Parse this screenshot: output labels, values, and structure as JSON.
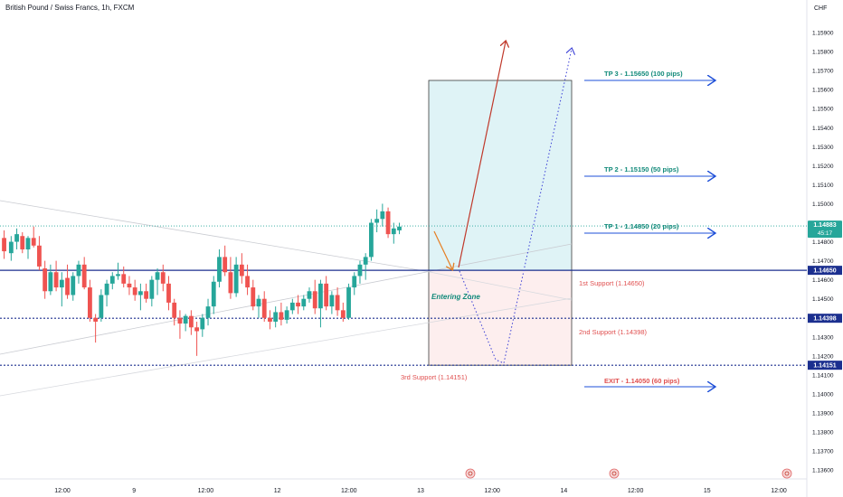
{
  "header": {
    "title": "British Pound / Swiss Francs, 1h, FXCM",
    "currency": "CHF"
  },
  "colors": {
    "bull": "#26a69a",
    "bear": "#ef5350",
    "level_line": "#1b2f8f",
    "tp_text": "#128a7a",
    "support_text": "#e05050",
    "arrow_blue": "#1e4fd8",
    "long_zone": "#dff3f6",
    "short_zone": "#fdeeee",
    "last_price_bg": "#26a69a"
  },
  "chart_data": {
    "type": "candlestick",
    "symbol": "British Pound / Swiss Francs",
    "interval": "1h",
    "source": "FXCM",
    "ylim": [
      1.1355,
      1.1612
    ],
    "y_ticks": [
      "1.15900",
      "1.15800",
      "1.15700",
      "1.15600",
      "1.15500",
      "1.15400",
      "1.15300",
      "1.15200",
      "1.15100",
      "1.15000",
      "1.14900",
      "1.14800",
      "1.14700",
      "1.14600",
      "1.14500",
      "1.14400",
      "1.14300",
      "1.14200",
      "1.14100",
      "1.14000",
      "1.13900",
      "1.13800",
      "1.13700",
      "1.13600"
    ],
    "x_ticks": [
      {
        "label": "12:00",
        "x": 5
      },
      {
        "label": "9",
        "x": 10
      },
      {
        "label": "12:00",
        "x": 15
      },
      {
        "label": "12",
        "x": 20
      },
      {
        "label": "12:00",
        "x": 25
      },
      {
        "label": "13",
        "x": 30
      },
      {
        "label": "12:00",
        "x": 35
      },
      {
        "label": "14",
        "x": 40
      },
      {
        "label": "12:00",
        "x": 45
      },
      {
        "label": "15",
        "x": 50
      },
      {
        "label": "12:00",
        "x": 55
      }
    ],
    "candles": [
      {
        "x": 0.1,
        "o": 1.1482,
        "h": 1.1486,
        "l": 1.1471,
        "c": 1.1475
      },
      {
        "x": 0.6,
        "o": 1.1474,
        "h": 1.1483,
        "l": 1.147,
        "c": 1.148
      },
      {
        "x": 1.0,
        "o": 1.148,
        "h": 1.1487,
        "l": 1.1476,
        "c": 1.1484
      },
      {
        "x": 1.4,
        "o": 1.1483,
        "h": 1.1485,
        "l": 1.1474,
        "c": 1.1476
      },
      {
        "x": 1.8,
        "o": 1.1476,
        "h": 1.1483,
        "l": 1.1471,
        "c": 1.1482
      },
      {
        "x": 2.2,
        "o": 1.1482,
        "h": 1.1488,
        "l": 1.1477,
        "c": 1.1478
      },
      {
        "x": 2.6,
        "o": 1.1478,
        "h": 1.1483,
        "l": 1.1465,
        "c": 1.1467
      },
      {
        "x": 3.0,
        "o": 1.1466,
        "h": 1.147,
        "l": 1.145,
        "c": 1.1454
      },
      {
        "x": 3.4,
        "o": 1.1454,
        "h": 1.1468,
        "l": 1.1452,
        "c": 1.1464
      },
      {
        "x": 3.8,
        "o": 1.1464,
        "h": 1.147,
        "l": 1.1454,
        "c": 1.1456
      },
      {
        "x": 4.2,
        "o": 1.1456,
        "h": 1.1464,
        "l": 1.1446,
        "c": 1.146
      },
      {
        "x": 4.6,
        "o": 1.1461,
        "h": 1.1468,
        "l": 1.145,
        "c": 1.1452
      },
      {
        "x": 5.0,
        "o": 1.1452,
        "h": 1.1464,
        "l": 1.1449,
        "c": 1.1462
      },
      {
        "x": 5.4,
        "o": 1.1462,
        "h": 1.147,
        "l": 1.1458,
        "c": 1.1468
      },
      {
        "x": 5.8,
        "o": 1.1468,
        "h": 1.1472,
        "l": 1.1455,
        "c": 1.1456
      },
      {
        "x": 6.2,
        "o": 1.1456,
        "h": 1.146,
        "l": 1.1438,
        "c": 1.144
      },
      {
        "x": 6.6,
        "o": 1.144,
        "h": 1.1442,
        "l": 1.1427,
        "c": 1.1438
      },
      {
        "x": 7.0,
        "o": 1.144,
        "h": 1.1455,
        "l": 1.1438,
        "c": 1.1452
      },
      {
        "x": 7.4,
        "o": 1.1452,
        "h": 1.146,
        "l": 1.1446,
        "c": 1.1458
      },
      {
        "x": 7.8,
        "o": 1.1458,
        "h": 1.1464,
        "l": 1.1455,
        "c": 1.1462
      },
      {
        "x": 8.2,
        "o": 1.1462,
        "h": 1.1469,
        "l": 1.146,
        "c": 1.1463
      },
      {
        "x": 8.6,
        "o": 1.1463,
        "h": 1.1467,
        "l": 1.1456,
        "c": 1.1458
      },
      {
        "x": 9.0,
        "o": 1.1458,
        "h": 1.1462,
        "l": 1.1452,
        "c": 1.1456
      },
      {
        "x": 9.4,
        "o": 1.1456,
        "h": 1.146,
        "l": 1.1449,
        "c": 1.1452
      },
      {
        "x": 9.8,
        "o": 1.1452,
        "h": 1.1458,
        "l": 1.1444,
        "c": 1.1454
      },
      {
        "x": 10.2,
        "o": 1.1454,
        "h": 1.1458,
        "l": 1.1448,
        "c": 1.145
      },
      {
        "x": 10.6,
        "o": 1.145,
        "h": 1.1462,
        "l": 1.1446,
        "c": 1.146
      },
      {
        "x": 11.0,
        "o": 1.146,
        "h": 1.1466,
        "l": 1.1452,
        "c": 1.1464
      },
      {
        "x": 11.4,
        "o": 1.1464,
        "h": 1.1468,
        "l": 1.1454,
        "c": 1.1458
      },
      {
        "x": 11.8,
        "o": 1.1458,
        "h": 1.1462,
        "l": 1.1444,
        "c": 1.1448
      },
      {
        "x": 12.2,
        "o": 1.1448,
        "h": 1.145,
        "l": 1.1436,
        "c": 1.144
      },
      {
        "x": 12.6,
        "o": 1.144,
        "h": 1.1444,
        "l": 1.1429,
        "c": 1.1437
      },
      {
        "x": 13.0,
        "o": 1.1437,
        "h": 1.1442,
        "l": 1.1433,
        "c": 1.1441
      },
      {
        "x": 13.4,
        "o": 1.1441,
        "h": 1.1444,
        "l": 1.1431,
        "c": 1.1435
      },
      {
        "x": 13.8,
        "o": 1.1435,
        "h": 1.1438,
        "l": 1.142,
        "c": 1.1433
      },
      {
        "x": 14.2,
        "o": 1.1434,
        "h": 1.1442,
        "l": 1.143,
        "c": 1.144
      },
      {
        "x": 14.6,
        "o": 1.144,
        "h": 1.145,
        "l": 1.1436,
        "c": 1.1446
      },
      {
        "x": 15.0,
        "o": 1.1446,
        "h": 1.1462,
        "l": 1.1442,
        "c": 1.1459
      },
      {
        "x": 15.4,
        "o": 1.1459,
        "h": 1.1476,
        "l": 1.1456,
        "c": 1.1472
      },
      {
        "x": 15.8,
        "o": 1.1472,
        "h": 1.1478,
        "l": 1.1462,
        "c": 1.1464
      },
      {
        "x": 16.2,
        "o": 1.1464,
        "h": 1.1472,
        "l": 1.145,
        "c": 1.1453
      },
      {
        "x": 16.6,
        "o": 1.1453,
        "h": 1.1472,
        "l": 1.1451,
        "c": 1.1468
      },
      {
        "x": 17.0,
        "o": 1.1468,
        "h": 1.1474,
        "l": 1.1458,
        "c": 1.1462
      },
      {
        "x": 17.4,
        "o": 1.1462,
        "h": 1.1468,
        "l": 1.1452,
        "c": 1.1456
      },
      {
        "x": 17.8,
        "o": 1.1456,
        "h": 1.146,
        "l": 1.1444,
        "c": 1.1446
      },
      {
        "x": 18.2,
        "o": 1.1446,
        "h": 1.1452,
        "l": 1.144,
        "c": 1.145
      },
      {
        "x": 18.6,
        "o": 1.145,
        "h": 1.1454,
        "l": 1.1438,
        "c": 1.144
      },
      {
        "x": 19.0,
        "o": 1.144,
        "h": 1.1444,
        "l": 1.1434,
        "c": 1.1438
      },
      {
        "x": 19.4,
        "o": 1.1438,
        "h": 1.1446,
        "l": 1.1435,
        "c": 1.1443
      },
      {
        "x": 19.8,
        "o": 1.1443,
        "h": 1.1448,
        "l": 1.1436,
        "c": 1.1439
      },
      {
        "x": 20.2,
        "o": 1.1439,
        "h": 1.1446,
        "l": 1.1437,
        "c": 1.1444
      },
      {
        "x": 20.6,
        "o": 1.1444,
        "h": 1.145,
        "l": 1.1442,
        "c": 1.1448
      },
      {
        "x": 21.0,
        "o": 1.1448,
        "h": 1.1452,
        "l": 1.1442,
        "c": 1.1446
      },
      {
        "x": 21.4,
        "o": 1.1446,
        "h": 1.1452,
        "l": 1.1444,
        "c": 1.145
      },
      {
        "x": 21.8,
        "o": 1.145,
        "h": 1.1456,
        "l": 1.1448,
        "c": 1.1454
      },
      {
        "x": 22.2,
        "o": 1.1454,
        "h": 1.146,
        "l": 1.1442,
        "c": 1.1445
      },
      {
        "x": 22.6,
        "o": 1.1445,
        "h": 1.146,
        "l": 1.1435,
        "c": 1.1458
      },
      {
        "x": 23.0,
        "o": 1.1458,
        "h": 1.1462,
        "l": 1.1444,
        "c": 1.1446
      },
      {
        "x": 23.4,
        "o": 1.1446,
        "h": 1.1454,
        "l": 1.1442,
        "c": 1.1452
      },
      {
        "x": 23.8,
        "o": 1.1452,
        "h": 1.1456,
        "l": 1.1441,
        "c": 1.1444
      },
      {
        "x": 24.2,
        "o": 1.1444,
        "h": 1.1448,
        "l": 1.1438,
        "c": 1.144
      },
      {
        "x": 24.6,
        "o": 1.144,
        "h": 1.1458,
        "l": 1.1439,
        "c": 1.1456
      },
      {
        "x": 25.0,
        "o": 1.1456,
        "h": 1.1464,
        "l": 1.1452,
        "c": 1.1462
      },
      {
        "x": 25.4,
        "o": 1.1462,
        "h": 1.147,
        "l": 1.1458,
        "c": 1.1468
      },
      {
        "x": 25.8,
        "o": 1.1468,
        "h": 1.1474,
        "l": 1.146,
        "c": 1.1472
      },
      {
        "x": 26.2,
        "o": 1.1472,
        "h": 1.1492,
        "l": 1.147,
        "c": 1.149
      },
      {
        "x": 26.6,
        "o": 1.149,
        "h": 1.1497,
        "l": 1.1485,
        "c": 1.1492
      },
      {
        "x": 27.0,
        "o": 1.1492,
        "h": 1.15,
        "l": 1.1488,
        "c": 1.1496
      },
      {
        "x": 27.4,
        "o": 1.1496,
        "h": 1.1498,
        "l": 1.1482,
        "c": 1.1484
      },
      {
        "x": 27.8,
        "o": 1.1484,
        "h": 1.149,
        "l": 1.1479,
        "c": 1.1487
      },
      {
        "x": 28.2,
        "o": 1.1486,
        "h": 1.149,
        "l": 1.1484,
        "c": 1.1488
      }
    ]
  },
  "levels": {
    "support1": {
      "value": 1.1465,
      "tag": "1.14650"
    },
    "support2": {
      "value": 1.14398,
      "tag": "1.14398"
    },
    "support3": {
      "value": 1.14151,
      "tag": "1.14151"
    },
    "last_price": {
      "value": 1.14883,
      "tag": "1.14883",
      "countdown": "45:17"
    }
  },
  "annotations": {
    "tp3": "TP 3 - 1.15650 (100 pips)",
    "tp2": "TP 2 - 1.15150 (50 pips)",
    "tp1": "TP 1 - 1.14850 (20 pips)",
    "support1": "1st Support  (1.14650)",
    "support2": "2nd Support (1.14398)",
    "support3": "3rd Support (1.14151)",
    "exit": "EXIT - 1.14050 (60 pips)",
    "entering_zone": "Entering Zone"
  }
}
